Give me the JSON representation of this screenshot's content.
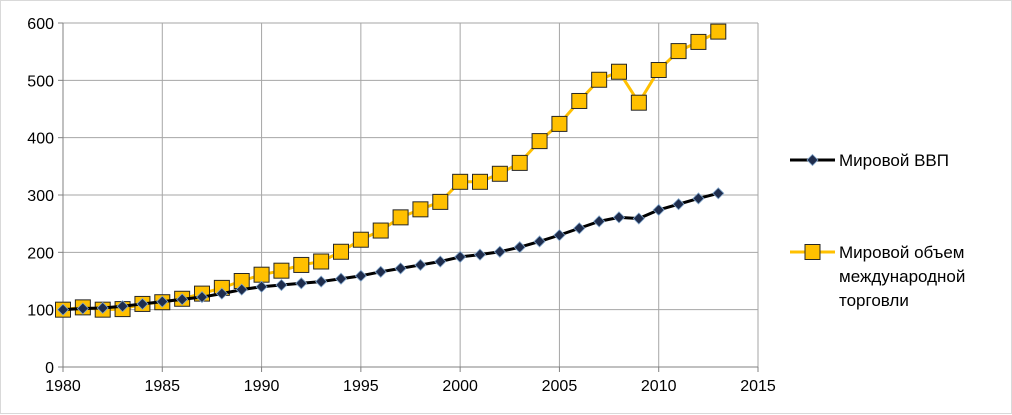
{
  "chart_data": {
    "type": "line",
    "title": "",
    "xlabel": "",
    "ylabel": "",
    "xlim": [
      1980,
      2015
    ],
    "ylim": [
      0,
      600
    ],
    "x_ticks": [
      1980,
      1985,
      1990,
      1995,
      2000,
      2005,
      2010,
      2015
    ],
    "y_ticks": [
      0,
      100,
      200,
      300,
      400,
      500,
      600
    ],
    "grid": true,
    "legend_position": "right",
    "x": [
      1980,
      1981,
      1982,
      1983,
      1984,
      1985,
      1986,
      1987,
      1988,
      1989,
      1990,
      1991,
      1992,
      1993,
      1994,
      1995,
      1996,
      1997,
      1998,
      1999,
      2000,
      2001,
      2002,
      2003,
      2004,
      2005,
      2006,
      2007,
      2008,
      2009,
      2010,
      2011,
      2012,
      2013
    ],
    "series": [
      {
        "name": "Мировой ВВП",
        "line_color": "#000000",
        "marker": "diamond",
        "marker_color": "#1f2d4d",
        "values": [
          100,
          102,
          103,
          106,
          110,
          114,
          118,
          122,
          128,
          135,
          140,
          143,
          146,
          149,
          154,
          159,
          166,
          172,
          178,
          184,
          192,
          196,
          201,
          209,
          219,
          230,
          242,
          254,
          261,
          259,
          274,
          284,
          294,
          303
        ]
      },
      {
        "name": "Мировой объем международной торговли",
        "name_lines": [
          "Мировой объем",
          "международной",
          "торговли"
        ],
        "line_color": "#ffc000",
        "marker": "square",
        "marker_color": "#ffc000",
        "values": [
          100,
          104,
          100,
          101,
          110,
          113,
          119,
          128,
          138,
          150,
          161,
          168,
          178,
          184,
          201,
          222,
          238,
          261,
          275,
          288,
          323,
          323,
          337,
          356,
          394,
          424,
          464,
          501,
          515,
          461,
          518,
          551,
          567,
          585
        ]
      }
    ]
  }
}
